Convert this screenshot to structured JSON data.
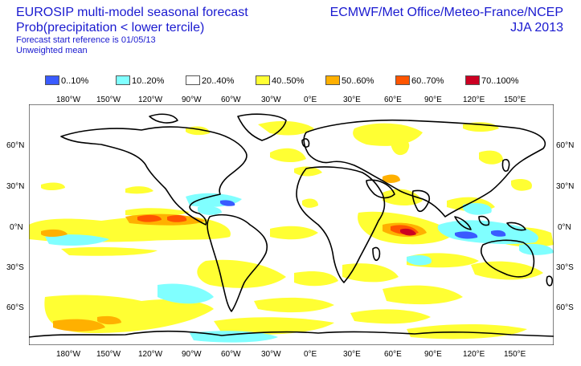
{
  "header": {
    "title": "EUROSIP multi-model seasonal forecast",
    "subtitle": "Prob(precipitation < lower tercile)",
    "start_ref": "Forecast start reference is 01/05/13",
    "mean_type": "Unweighted mean",
    "centres": "ECMWF/Met Office/Meteo-France/NCEP",
    "season": "JJA 2013"
  },
  "legend": {
    "items": [
      {
        "label": "0..10%",
        "color": "#3a5bff"
      },
      {
        "label": "10..20%",
        "color": "#80ffff"
      },
      {
        "label": "20..40%",
        "color": "#ffffff"
      },
      {
        "label": "40..50%",
        "color": "#ffff33"
      },
      {
        "label": "50..60%",
        "color": "#ffb000"
      },
      {
        "label": "60..70%",
        "color": "#ff5500"
      },
      {
        "label": "70..100%",
        "color": "#cc0022"
      }
    ]
  },
  "axes": {
    "lon_labels": [
      "180°W",
      "150°W",
      "120°W",
      "90°W",
      "60°W",
      "30°W",
      "0°E",
      "30°E",
      "60°E",
      "90°E",
      "120°E",
      "150°E"
    ],
    "lat_labels": [
      "60°N",
      "30°N",
      "0°N",
      "30°S",
      "60°S"
    ]
  }
}
